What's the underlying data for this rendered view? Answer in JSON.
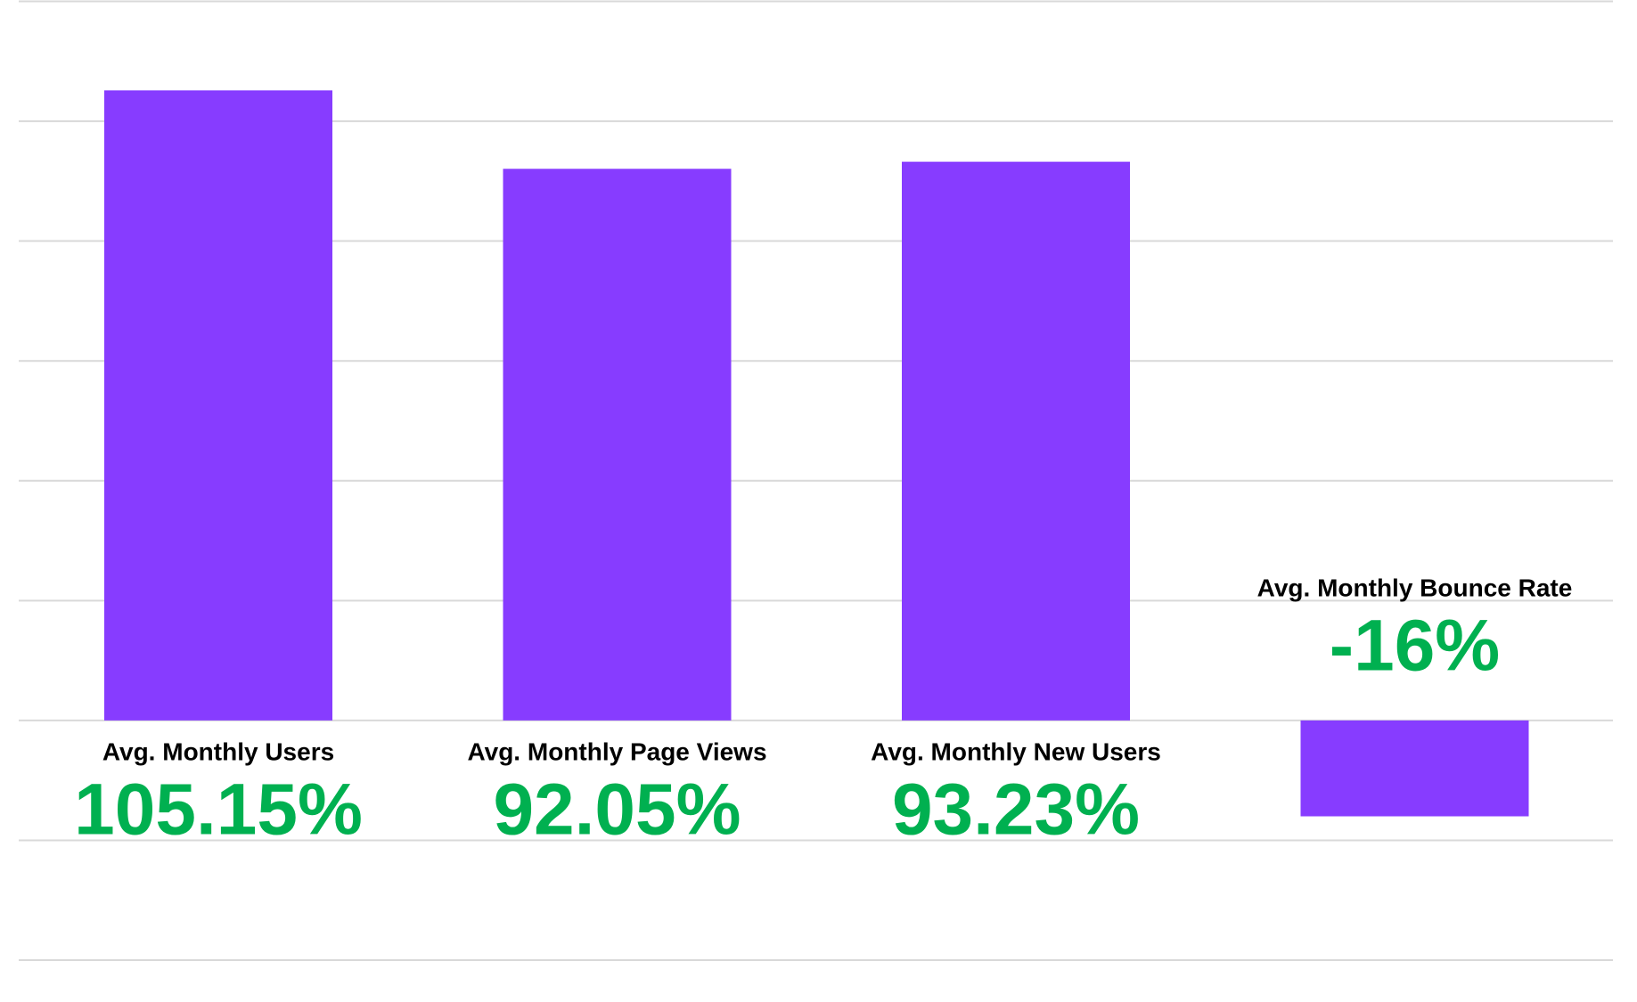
{
  "chart_data": {
    "type": "bar",
    "categories": [
      "Avg. Monthly Users",
      "Avg. Monthly Page Views",
      "Avg. Monthly New Users",
      "Avg. Monthly Bounce Rate"
    ],
    "values": [
      105.15,
      92.05,
      93.23,
      -16
    ],
    "value_labels": [
      "105.15%",
      "92.05%",
      "93.23%",
      "-16%"
    ],
    "color": "#873cff",
    "label_color": "#00b050",
    "ylim": [
      -40,
      120
    ],
    "yticks": [
      -40,
      -20,
      0,
      20,
      40,
      60,
      80,
      100,
      120
    ],
    "grid": true
  }
}
